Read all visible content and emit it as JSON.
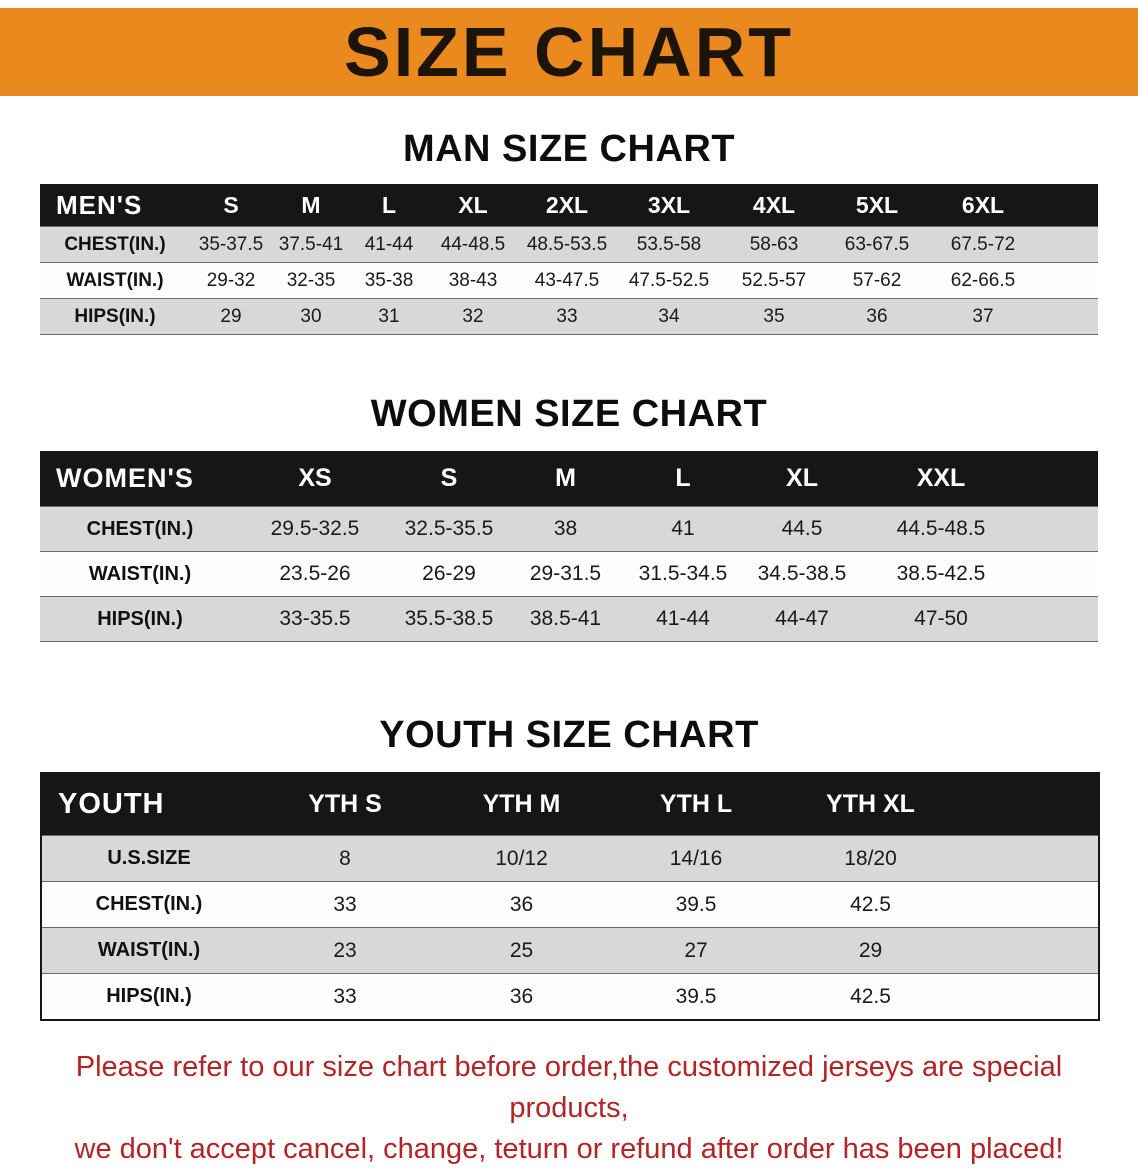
{
  "banner": {
    "title": "SIZE CHART"
  },
  "colors": {
    "banner_bg": "#ea8a1e",
    "table_header_bg": "#161616",
    "row_gray": "#d8d8d8",
    "row_white": "#fdfdfd",
    "footer_red": "#b32424"
  },
  "sections": [
    {
      "heading": "MAN SIZE CHART",
      "table": {
        "header": [
          "MEN'S",
          "S",
          "M",
          "L",
          "XL",
          "2XL",
          "3XL",
          "4XL",
          "5XL",
          "6XL"
        ],
        "rows": [
          [
            "CHEST(IN.)",
            "35-37.5",
            "37.5-41",
            "41-44",
            "44-48.5",
            "48.5-53.5",
            "53.5-58",
            "58-63",
            "63-67.5",
            "67.5-72"
          ],
          [
            "WAIST(IN.)",
            "29-32",
            "32-35",
            "35-38",
            "38-43",
            "43-47.5",
            "47.5-52.5",
            "52.5-57",
            "57-62",
            "62-66.5"
          ],
          [
            "HIPS(IN.)",
            "29",
            "30",
            "31",
            "32",
            "33",
            "34",
            "35",
            "36",
            "37"
          ]
        ]
      }
    },
    {
      "heading": "WOMEN SIZE CHART",
      "table": {
        "header": [
          "WOMEN'S",
          "XS",
          "S",
          "M",
          "L",
          "XL",
          "XXL"
        ],
        "rows": [
          [
            "CHEST(IN.)",
            "29.5-32.5",
            "32.5-35.5",
            "38",
            "41",
            "44.5",
            "44.5-48.5"
          ],
          [
            "WAIST(IN.)",
            "23.5-26",
            "26-29",
            "29-31.5",
            "31.5-34.5",
            "34.5-38.5",
            "38.5-42.5"
          ],
          [
            "HIPS(IN.)",
            "33-35.5",
            "35.5-38.5",
            "38.5-41",
            "41-44",
            "44-47",
            "47-50"
          ]
        ]
      }
    },
    {
      "heading": "YOUTH SIZE CHART",
      "table": {
        "header": [
          "YOUTH",
          "YTH S",
          "YTH M",
          "YTH L",
          "YTH XL"
        ],
        "rows": [
          [
            "U.S.SIZE",
            "8",
            "10/12",
            "14/16",
            "18/20"
          ],
          [
            "CHEST(IN.)",
            "33",
            "36",
            "39.5",
            "42.5"
          ],
          [
            "WAIST(IN.)",
            "23",
            "25",
            "27",
            "29"
          ],
          [
            "HIPS(IN.)",
            "33",
            "36",
            "39.5",
            "42.5"
          ]
        ]
      }
    }
  ],
  "footer": {
    "lines": [
      "Please refer to our size chart before order,the customized jerseys are special products,",
      "we don't accept cancel, change, teturn or refund after order has been placed!"
    ]
  }
}
